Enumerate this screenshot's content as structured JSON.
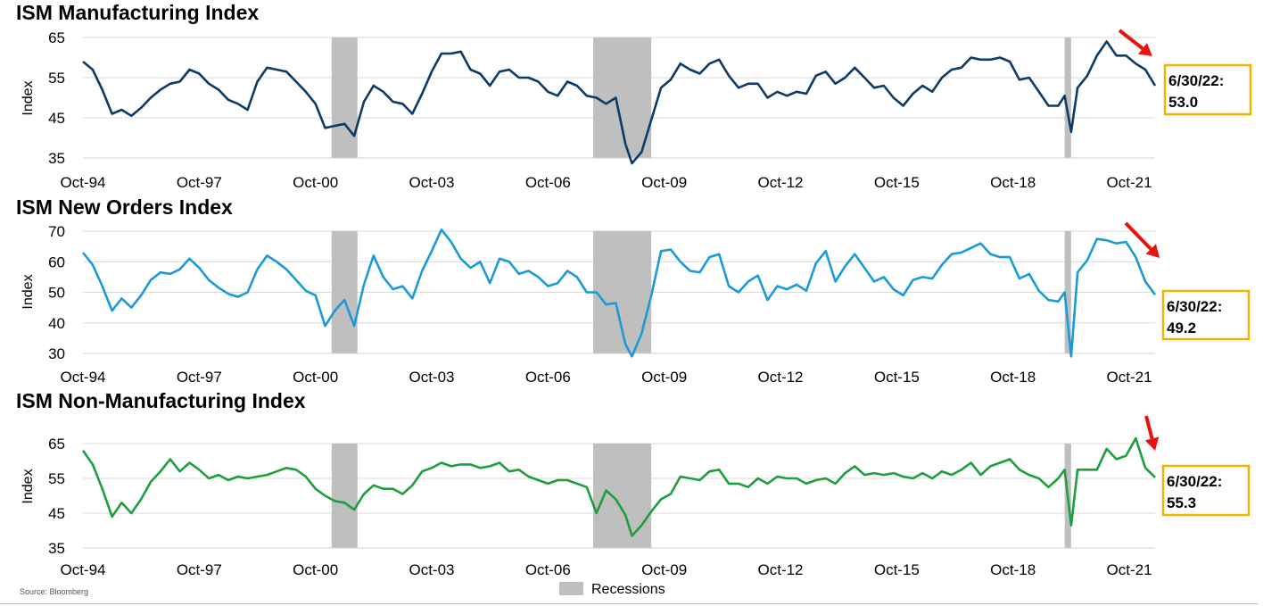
{
  "source": "Source: Bloomberg",
  "legend": {
    "label": "Recessions",
    "color": "#bfbfbf"
  },
  "x_ticks": [
    "Oct-94",
    "Oct-97",
    "Oct-00",
    "Oct-03",
    "Oct-06",
    "Oct-09",
    "Oct-12",
    "Oct-15",
    "Oct-18",
    "Oct-21"
  ],
  "recessions": [
    [
      "2001-03",
      "2001-11"
    ],
    [
      "2007-12",
      "2009-06"
    ],
    [
      "2020-02",
      "2020-04"
    ]
  ],
  "chart_data": [
    {
      "type": "line",
      "title": "ISM Manufacturing Index",
      "ylabel": "Index",
      "yticks": [
        35,
        45,
        55,
        65
      ],
      "ylim": [
        35,
        65
      ],
      "xlim": [
        "1994-10",
        "2022-06"
      ],
      "color": "#0d3b66",
      "callout": "6/30/22:\n53.0",
      "series": [
        {
          "x": [
            "1994-10",
            "1995-01",
            "1995-04",
            "1995-07",
            "1995-10",
            "1996-01",
            "1996-04",
            "1996-07",
            "1996-10",
            "1997-01",
            "1997-04",
            "1997-07",
            "1997-10",
            "1998-01",
            "1998-04",
            "1998-07",
            "1998-10",
            "1999-01",
            "1999-04",
            "1999-07",
            "1999-10",
            "2000-01",
            "2000-04",
            "2000-07",
            "2000-10",
            "2001-01",
            "2001-04",
            "2001-07",
            "2001-10",
            "2002-01",
            "2002-04",
            "2002-07",
            "2002-10",
            "2003-01",
            "2003-04",
            "2003-07",
            "2003-10",
            "2004-01",
            "2004-04",
            "2004-07",
            "2004-10",
            "2005-01",
            "2005-04",
            "2005-07",
            "2005-10",
            "2006-01",
            "2006-04",
            "2006-07",
            "2006-10",
            "2007-01",
            "2007-04",
            "2007-07",
            "2007-10",
            "2008-01",
            "2008-04",
            "2008-07",
            "2008-10",
            "2008-12",
            "2009-03",
            "2009-06",
            "2009-09",
            "2009-12",
            "2010-03",
            "2010-06",
            "2010-09",
            "2010-12",
            "2011-03",
            "2011-06",
            "2011-09",
            "2011-12",
            "2012-03",
            "2012-06",
            "2012-09",
            "2012-12",
            "2013-03",
            "2013-06",
            "2013-09",
            "2013-12",
            "2014-03",
            "2014-06",
            "2014-09",
            "2014-12",
            "2015-03",
            "2015-06",
            "2015-09",
            "2015-12",
            "2016-03",
            "2016-06",
            "2016-09",
            "2016-12",
            "2017-03",
            "2017-06",
            "2017-09",
            "2017-12",
            "2018-03",
            "2018-06",
            "2018-09",
            "2018-12",
            "2019-03",
            "2019-06",
            "2019-09",
            "2019-12",
            "2020-02",
            "2020-04",
            "2020-06",
            "2020-09",
            "2020-12",
            "2021-03",
            "2021-06",
            "2021-09",
            "2021-12",
            "2022-03",
            "2022-06"
          ],
          "y": [
            59.0,
            57.0,
            52.0,
            46.0,
            47.0,
            45.5,
            47.5,
            50.0,
            52.0,
            53.5,
            54.0,
            57.0,
            56.0,
            53.5,
            52.0,
            49.5,
            48.5,
            47.0,
            54.0,
            57.5,
            57.0,
            56.5,
            54.0,
            51.5,
            48.5,
            42.5,
            43.0,
            43.5,
            40.5,
            49.0,
            53.0,
            51.5,
            49.0,
            48.5,
            46.0,
            51.0,
            56.5,
            61.0,
            61.0,
            61.5,
            57.0,
            56.0,
            53.0,
            56.5,
            57.0,
            55.0,
            55.0,
            54.0,
            51.5,
            50.5,
            54.0,
            53.0,
            50.5,
            50.0,
            48.5,
            50.0,
            38.5,
            33.5,
            36.5,
            44.5,
            52.5,
            54.5,
            58.5,
            57.0,
            56.0,
            58.5,
            59.5,
            55.5,
            52.5,
            53.5,
            53.5,
            50.0,
            51.5,
            50.5,
            51.5,
            51.0,
            55.5,
            56.5,
            53.5,
            55.0,
            57.5,
            55.0,
            52.5,
            53.0,
            50.0,
            48.0,
            51.0,
            53.0,
            51.5,
            55.0,
            57.0,
            57.5,
            60.0,
            59.5,
            59.5,
            60.0,
            59.0,
            54.5,
            55.0,
            51.5,
            48.0,
            48.0,
            50.5,
            41.5,
            52.5,
            55.5,
            60.5,
            64.0,
            60.5,
            60.5,
            58.5,
            57.0,
            53.0
          ]
        }
      ]
    },
    {
      "type": "line",
      "title": "ISM New Orders Index",
      "ylabel": "Index",
      "yticks": [
        30,
        40,
        50,
        60,
        70
      ],
      "ylim": [
        30,
        70
      ],
      "xlim": [
        "1994-10",
        "2022-06"
      ],
      "color": "#1a9bd7",
      "callout": "6/30/22:\n49.2",
      "series": [
        {
          "x": [
            "1994-10",
            "1995-01",
            "1995-04",
            "1995-07",
            "1995-10",
            "1996-01",
            "1996-04",
            "1996-07",
            "1996-10",
            "1997-01",
            "1997-04",
            "1997-07",
            "1997-10",
            "1998-01",
            "1998-04",
            "1998-07",
            "1998-10",
            "1999-01",
            "1999-04",
            "1999-07",
            "1999-10",
            "2000-01",
            "2000-04",
            "2000-07",
            "2000-10",
            "2001-01",
            "2001-04",
            "2001-07",
            "2001-10",
            "2002-01",
            "2002-04",
            "2002-07",
            "2002-10",
            "2003-01",
            "2003-04",
            "2003-07",
            "2003-10",
            "2004-01",
            "2004-04",
            "2004-07",
            "2004-10",
            "2005-01",
            "2005-04",
            "2005-07",
            "2005-10",
            "2006-01",
            "2006-04",
            "2006-07",
            "2006-10",
            "2007-01",
            "2007-04",
            "2007-07",
            "2007-10",
            "2008-01",
            "2008-04",
            "2008-07",
            "2008-10",
            "2008-12",
            "2009-03",
            "2009-06",
            "2009-09",
            "2009-12",
            "2010-03",
            "2010-06",
            "2010-09",
            "2010-12",
            "2011-03",
            "2011-06",
            "2011-09",
            "2011-12",
            "2012-03",
            "2012-06",
            "2012-09",
            "2012-12",
            "2013-03",
            "2013-06",
            "2013-09",
            "2013-12",
            "2014-03",
            "2014-06",
            "2014-09",
            "2014-12",
            "2015-03",
            "2015-06",
            "2015-09",
            "2015-12",
            "2016-03",
            "2016-06",
            "2016-09",
            "2016-12",
            "2017-03",
            "2017-06",
            "2017-09",
            "2017-12",
            "2018-03",
            "2018-06",
            "2018-09",
            "2018-12",
            "2019-03",
            "2019-06",
            "2019-09",
            "2019-12",
            "2020-02",
            "2020-04",
            "2020-06",
            "2020-09",
            "2020-12",
            "2021-03",
            "2021-06",
            "2021-09",
            "2021-12",
            "2022-03",
            "2022-06"
          ],
          "y": [
            63.0,
            59.0,
            52.0,
            44.0,
            48.0,
            45.0,
            49.0,
            54.0,
            56.5,
            56.0,
            57.5,
            61.0,
            58.0,
            54.0,
            51.5,
            49.5,
            48.5,
            50.0,
            57.5,
            62.0,
            60.0,
            57.5,
            54.0,
            50.5,
            49.0,
            39.0,
            44.0,
            47.5,
            39.0,
            52.5,
            62.0,
            55.0,
            51.0,
            52.0,
            48.0,
            57.0,
            63.5,
            70.5,
            66.5,
            61.0,
            58.0,
            60.0,
            53.0,
            61.0,
            60.0,
            56.0,
            57.0,
            55.0,
            52.0,
            53.0,
            57.0,
            55.0,
            50.0,
            50.0,
            46.0,
            46.5,
            33.0,
            29.0,
            36.5,
            49.0,
            63.5,
            64.0,
            60.0,
            57.0,
            56.5,
            61.5,
            62.5,
            52.0,
            50.0,
            53.5,
            55.5,
            47.5,
            52.0,
            51.0,
            52.5,
            50.5,
            59.5,
            63.5,
            53.5,
            58.5,
            62.5,
            58.0,
            53.5,
            55.0,
            51.0,
            49.0,
            54.0,
            55.0,
            54.5,
            59.0,
            62.5,
            63.0,
            64.5,
            66.0,
            62.5,
            61.5,
            61.5,
            54.5,
            56.0,
            50.5,
            47.5,
            47.0,
            50.0,
            29.0,
            56.5,
            60.5,
            67.5,
            67.0,
            66.0,
            66.5,
            61.5,
            53.5,
            49.2
          ]
        }
      ]
    },
    {
      "type": "line",
      "title": "ISM Non-Manufacturing Index",
      "ylabel": "Index",
      "yticks": [
        35,
        45,
        55,
        65
      ],
      "ylim": [
        35,
        65
      ],
      "xlim": [
        "1994-10",
        "2022-06"
      ],
      "color": "#1e9e3e",
      "callout": "6/30/22:\n55.3",
      "series": [
        {
          "x": [
            "1994-10",
            "1995-01",
            "1995-04",
            "1995-07",
            "1995-10",
            "1996-01",
            "1996-04",
            "1996-07",
            "1996-10",
            "1997-01",
            "1997-04",
            "1997-07",
            "1997-10",
            "1998-01",
            "1998-04",
            "1998-07",
            "1998-10",
            "1999-01",
            "1999-04",
            "1999-07",
            "1999-10",
            "2000-01",
            "2000-04",
            "2000-07",
            "2000-10",
            "2001-01",
            "2001-04",
            "2001-07",
            "2001-10",
            "2002-01",
            "2002-04",
            "2002-07",
            "2002-10",
            "2003-01",
            "2003-04",
            "2003-07",
            "2003-10",
            "2004-01",
            "2004-04",
            "2004-07",
            "2004-10",
            "2005-01",
            "2005-04",
            "2005-07",
            "2005-10",
            "2006-01",
            "2006-04",
            "2006-07",
            "2006-10",
            "2007-01",
            "2007-04",
            "2007-07",
            "2007-10",
            "2008-01",
            "2008-04",
            "2008-07",
            "2008-10",
            "2008-12",
            "2009-03",
            "2009-06",
            "2009-09",
            "2009-12",
            "2010-03",
            "2010-06",
            "2010-09",
            "2010-12",
            "2011-03",
            "2011-06",
            "2011-09",
            "2011-12",
            "2012-03",
            "2012-06",
            "2012-09",
            "2012-12",
            "2013-03",
            "2013-06",
            "2013-09",
            "2013-12",
            "2014-03",
            "2014-06",
            "2014-09",
            "2014-12",
            "2015-03",
            "2015-06",
            "2015-09",
            "2015-12",
            "2016-03",
            "2016-06",
            "2016-09",
            "2016-12",
            "2017-03",
            "2017-06",
            "2017-09",
            "2017-12",
            "2018-03",
            "2018-06",
            "2018-09",
            "2018-12",
            "2019-03",
            "2019-06",
            "2019-09",
            "2019-12",
            "2020-02",
            "2020-04",
            "2020-06",
            "2020-09",
            "2020-12",
            "2021-03",
            "2021-06",
            "2021-09",
            "2021-12",
            "2022-03",
            "2022-06"
          ],
          "y": [
            63.0,
            59.0,
            52.0,
            44.0,
            48.0,
            45.0,
            49.0,
            54.0,
            57.0,
            60.5,
            57.0,
            59.5,
            57.5,
            55.0,
            56.0,
            54.5,
            55.5,
            55.0,
            55.5,
            56.0,
            57.0,
            58.0,
            57.5,
            55.5,
            52.0,
            50.0,
            48.5,
            48.0,
            46.0,
            50.5,
            53.0,
            52.0,
            52.0,
            50.5,
            53.0,
            57.0,
            58.0,
            59.5,
            58.5,
            59.0,
            59.0,
            58.0,
            58.5,
            59.5,
            57.0,
            57.5,
            55.5,
            54.5,
            53.5,
            54.5,
            54.5,
            53.5,
            52.5,
            45.0,
            51.5,
            49.0,
            44.5,
            38.5,
            41.5,
            45.5,
            49.0,
            50.5,
            55.5,
            55.0,
            54.5,
            57.0,
            57.5,
            53.5,
            53.5,
            52.5,
            55.0,
            53.5,
            55.5,
            55.0,
            55.0,
            53.5,
            54.5,
            55.0,
            53.5,
            56.5,
            58.5,
            56.0,
            56.5,
            56.0,
            56.5,
            55.5,
            55.0,
            56.5,
            55.0,
            57.0,
            56.0,
            57.5,
            59.5,
            56.0,
            58.5,
            59.5,
            60.5,
            57.5,
            56.0,
            55.0,
            52.5,
            55.0,
            57.5,
            41.5,
            57.5,
            57.5,
            57.5,
            63.5,
            60.5,
            61.5,
            66.5,
            58.0,
            55.3
          ]
        }
      ]
    }
  ]
}
